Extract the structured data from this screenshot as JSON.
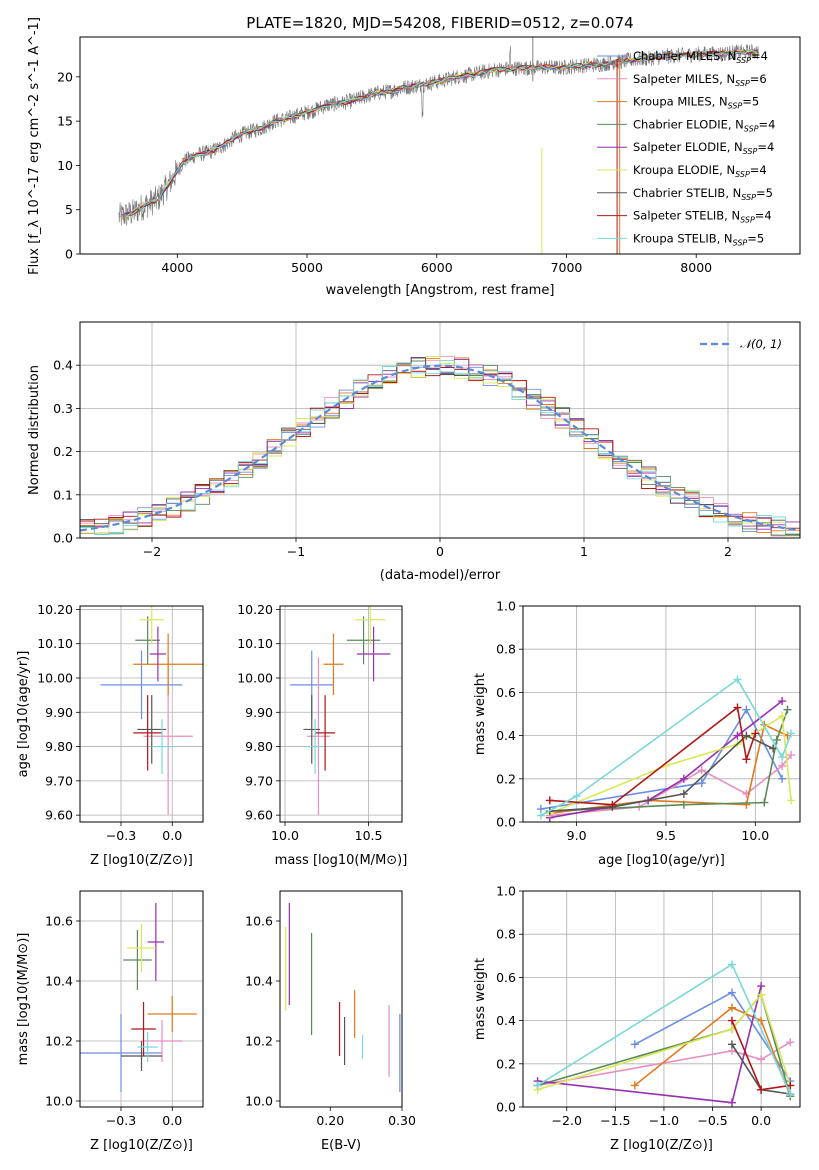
{
  "colors": {
    "Chabrier MILES": "#6b8fe0",
    "Salpeter MILES": "#e88fbf",
    "Kroupa MILES": "#e07a1f",
    "Chabrier ELODIE": "#5a8a5a",
    "Salpeter ELODIE": "#9830b0",
    "Kroupa ELODIE": "#d9e85a",
    "Chabrier STELIB": "#555555",
    "Salpeter STELIB": "#b01818",
    "Kroupa STELIB": "#7ad8d8"
  },
  "chart_data": [
    {
      "id": "spectrum",
      "type": "line",
      "title": "PLATE=1820, MJD=54208, FIBERID=0512, z=0.074",
      "xlabel": "wavelength [Angstrom, rest frame]",
      "ylabel": "Flux [f_λ 10^-17 erg cm^-2 s^-1 A^-1]",
      "xlim": [
        3250,
        8800
      ],
      "ylim": [
        0,
        24.5
      ],
      "xticks": [
        4000,
        5000,
        6000,
        7000,
        8000
      ],
      "yticks": [
        0,
        5,
        10,
        15,
        20
      ],
      "grid": false,
      "legend_position": "right",
      "x": [
        3550,
        3650,
        3750,
        3850,
        3950,
        4050,
        4150,
        4250,
        4350,
        4450,
        4550,
        4650,
        4750,
        4850,
        4950,
        5050,
        5150,
        5250,
        5350,
        5450,
        5550,
        5650,
        5750,
        5850,
        5950,
        6050,
        6150,
        6250,
        6350,
        6450,
        6550,
        6650,
        6750,
        6850,
        6950,
        7050,
        7150,
        7250,
        7350,
        7450,
        7550,
        7650,
        7750,
        7850,
        7950,
        8050,
        8150,
        8250,
        8350,
        8450
      ],
      "y": [
        4.2,
        4.6,
        5.5,
        6.2,
        8.2,
        10.5,
        11.2,
        11.5,
        12.2,
        13.2,
        13.8,
        14.2,
        15.0,
        15.3,
        15.8,
        16.2,
        16.8,
        17.0,
        17.3,
        17.8,
        18.2,
        18.4,
        18.8,
        19.0,
        19.3,
        19.6,
        20.0,
        20.2,
        20.5,
        20.8,
        20.9,
        21.0,
        21.0,
        21.1,
        21.0,
        21.2,
        21.3,
        21.4,
        21.6,
        21.8,
        22.0,
        22.1,
        22.3,
        22.4,
        22.5,
        22.6,
        22.6,
        22.7,
        22.8,
        22.8
      ],
      "legend": [
        {
          "label": "Chabrier MILES, N_SSP=4",
          "name": "Chabrier MILES",
          "n": "4"
        },
        {
          "label": "Salpeter MILES, N_SSP=6",
          "name": "Salpeter MILES",
          "n": "6"
        },
        {
          "label": "Kroupa MILES, N_SSP=5",
          "name": "Kroupa MILES",
          "n": "5"
        },
        {
          "label": "Chabrier ELODIE, N_SSP=4",
          "name": "Chabrier ELODIE",
          "n": "4"
        },
        {
          "label": "Salpeter ELODIE, N_SSP=4",
          "name": "Salpeter ELODIE",
          "n": "4"
        },
        {
          "label": "Kroupa ELODIE, N_SSP=4",
          "name": "Kroupa ELODIE",
          "n": "4"
        },
        {
          "label": "Chabrier STELIB, N_SSP=5",
          "name": "Chabrier STELIB",
          "n": "5"
        },
        {
          "label": "Salpeter STELIB, N_SSP=4",
          "name": "Salpeter STELIB",
          "n": "4"
        },
        {
          "label": "Kroupa STELIB, N_SSP=5",
          "name": "Kroupa STELIB",
          "n": "5"
        }
      ]
    },
    {
      "id": "residuals",
      "type": "histogram",
      "xlabel": "(data-model)/error",
      "ylabel": "Normed distribution",
      "xlim": [
        -2.5,
        2.5
      ],
      "ylim": [
        0,
        0.5
      ],
      "xticks": [
        -2,
        -1,
        0,
        1,
        2
      ],
      "yticks": [
        0.0,
        0.1,
        0.2,
        0.3,
        0.4
      ],
      "grid": true,
      "legend": "𝒩(0, 1)",
      "legend_position": "top-right",
      "bin_width": 0.1
    },
    {
      "id": "age_vs_Z",
      "type": "scatter",
      "xlabel": "Z [log10(Z/Z⊙)]",
      "ylabel": "age [log10(age/yr)]",
      "xlim": [
        -0.45,
        0.15
      ],
      "ylim": [
        9.58,
        10.21
      ],
      "xticks": [
        -0.25,
        0.0
      ],
      "yticks": [
        9.6,
        9.7,
        9.8,
        9.9,
        10.0,
        10.1,
        10.2
      ],
      "grid": true,
      "points": [
        {
          "name": "Chabrier MILES",
          "x": -0.15,
          "y": 9.98,
          "xerr": 0.2,
          "yerr": 0.1
        },
        {
          "name": "Salpeter MILES",
          "x": -0.02,
          "y": 9.83,
          "xerr": 0.12,
          "yerr": 0.23
        },
        {
          "name": "Kroupa MILES",
          "x": -0.02,
          "y": 10.04,
          "xerr": 0.17,
          "yerr": 0.09
        },
        {
          "name": "Chabrier ELODIE",
          "x": -0.12,
          "y": 10.11,
          "xerr": 0.06,
          "yerr": 0.07
        },
        {
          "name": "Salpeter ELODIE",
          "x": -0.07,
          "y": 10.07,
          "xerr": 0.04,
          "yerr": 0.08
        },
        {
          "name": "Kroupa ELODIE",
          "x": -0.1,
          "y": 10.17,
          "xerr": 0.06,
          "yerr": 0.07
        },
        {
          "name": "Chabrier STELIB",
          "x": -0.1,
          "y": 9.85,
          "xerr": 0.07,
          "yerr": 0.1
        },
        {
          "name": "Salpeter STELIB",
          "x": -0.12,
          "y": 9.84,
          "xerr": 0.07,
          "yerr": 0.11
        },
        {
          "name": "Kroupa STELIB",
          "x": -0.05,
          "y": 9.8,
          "xerr": 0.05,
          "yerr": 0.08
        }
      ]
    },
    {
      "id": "age_vs_mass",
      "type": "scatter",
      "xlabel": "mass [log10(M/M⊙)]",
      "ylabel": "",
      "xlim": [
        9.97,
        10.7
      ],
      "ylim": [
        9.58,
        10.21
      ],
      "xticks": [
        10.0,
        10.5
      ],
      "yticks": [
        9.6,
        9.7,
        9.8,
        9.9,
        10.0,
        10.1,
        10.2
      ],
      "grid": true,
      "points": [
        {
          "name": "Chabrier MILES",
          "x": 10.16,
          "y": 9.98,
          "xerr": 0.13,
          "yerr": 0.1
        },
        {
          "name": "Salpeter MILES",
          "x": 10.2,
          "y": 9.83,
          "xerr": 0.07,
          "yerr": 0.23
        },
        {
          "name": "Kroupa MILES",
          "x": 10.29,
          "y": 10.04,
          "xerr": 0.06,
          "yerr": 0.09
        },
        {
          "name": "Chabrier ELODIE",
          "x": 10.47,
          "y": 10.11,
          "xerr": 0.1,
          "yerr": 0.07
        },
        {
          "name": "Salpeter ELODIE",
          "x": 10.53,
          "y": 10.07,
          "xerr": 0.1,
          "yerr": 0.08
        },
        {
          "name": "Kroupa ELODIE",
          "x": 10.51,
          "y": 10.17,
          "xerr": 0.09,
          "yerr": 0.07
        },
        {
          "name": "Chabrier STELIB",
          "x": 10.16,
          "y": 9.85,
          "xerr": 0.05,
          "yerr": 0.1
        },
        {
          "name": "Salpeter STELIB",
          "x": 10.24,
          "y": 9.84,
          "xerr": 0.06,
          "yerr": 0.11
        },
        {
          "name": "Kroupa STELIB",
          "x": 10.18,
          "y": 9.8,
          "xerr": 0.05,
          "yerr": 0.08
        }
      ]
    },
    {
      "id": "weight_vs_age",
      "type": "line",
      "xlabel": "age [log10(age/yr)]",
      "ylabel": "mass weight",
      "xlim": [
        8.7,
        10.25
      ],
      "ylim": [
        0,
        1
      ],
      "xticks": [
        9.0,
        9.5,
        10.0
      ],
      "yticks": [
        0.0,
        0.2,
        0.4,
        0.6,
        0.8,
        1.0
      ],
      "grid": true,
      "series": [
        {
          "name": "Chabrier MILES",
          "x": [
            8.8,
            9.7,
            9.95,
            10.15
          ],
          "y": [
            0.06,
            0.18,
            0.52,
            0.2
          ]
        },
        {
          "name": "Salpeter MILES",
          "x": [
            8.85,
            9.35,
            9.7,
            9.95,
            10.15,
            10.2
          ],
          "y": [
            0.03,
            0.07,
            0.24,
            0.13,
            0.26,
            0.31
          ]
        },
        {
          "name": "Kroupa MILES",
          "x": [
            8.85,
            9.4,
            9.95,
            10.05,
            10.18
          ],
          "y": [
            0.04,
            0.1,
            0.08,
            0.45,
            0.4
          ]
        },
        {
          "name": "Chabrier ELODIE",
          "x": [
            8.85,
            9.6,
            10.05,
            10.12,
            10.18
          ],
          "y": [
            0.05,
            0.08,
            0.09,
            0.38,
            0.52
          ]
        },
        {
          "name": "Salpeter ELODIE",
          "x": [
            8.85,
            9.4,
            9.6,
            9.9,
            10.15
          ],
          "y": [
            0.02,
            0.1,
            0.2,
            0.4,
            0.56
          ]
        },
        {
          "name": "Kroupa ELODIE",
          "x": [
            8.85,
            9.5,
            9.9,
            10.15,
            10.2
          ],
          "y": [
            0.04,
            0.26,
            0.36,
            0.49,
            0.1
          ]
        },
        {
          "name": "Chabrier STELIB",
          "x": [
            8.85,
            9.2,
            9.6,
            9.95,
            10.1
          ],
          "y": [
            0.05,
            0.07,
            0.13,
            0.4,
            0.34
          ]
        },
        {
          "name": "Salpeter STELIB",
          "x": [
            8.85,
            9.2,
            9.9,
            9.95,
            10.0
          ],
          "y": [
            0.1,
            0.08,
            0.53,
            0.29,
            0.41
          ]
        },
        {
          "name": "Kroupa STELIB",
          "x": [
            8.8,
            9.0,
            9.9,
            10.15,
            10.2
          ],
          "y": [
            0.03,
            0.12,
            0.66,
            0.3,
            0.41
          ]
        }
      ]
    },
    {
      "id": "mass_vs_Z",
      "type": "scatter",
      "xlabel": "Z [log10(Z/Z⊙)]",
      "ylabel": "mass [log10(M/M⊙)]",
      "xlim": [
        -0.45,
        0.15
      ],
      "ylim": [
        9.98,
        10.7
      ],
      "xticks": [
        -0.25,
        0.0
      ],
      "yticks": [
        10.0,
        10.2,
        10.4,
        10.6
      ],
      "grid": true,
      "points": [
        {
          "name": "Chabrier MILES",
          "x": -0.25,
          "y": 10.16,
          "xerr": 0.2,
          "yerr": 0.13
        },
        {
          "name": "Salpeter MILES",
          "x": -0.05,
          "y": 10.2,
          "xerr": 0.1,
          "yerr": 0.07
        },
        {
          "name": "Kroupa MILES",
          "x": 0.0,
          "y": 10.29,
          "xerr": 0.12,
          "yerr": 0.06
        },
        {
          "name": "Chabrier ELODIE",
          "x": -0.17,
          "y": 10.47,
          "xerr": 0.07,
          "yerr": 0.1
        },
        {
          "name": "Salpeter ELODIE",
          "x": -0.08,
          "y": 10.53,
          "xerr": 0.04,
          "yerr": 0.13
        },
        {
          "name": "Kroupa ELODIE",
          "x": -0.15,
          "y": 10.51,
          "xerr": 0.07,
          "yerr": 0.08
        },
        {
          "name": "Chabrier STELIB",
          "x": -0.15,
          "y": 10.15,
          "xerr": 0.1,
          "yerr": 0.05
        },
        {
          "name": "Salpeter STELIB",
          "x": -0.14,
          "y": 10.24,
          "xerr": 0.06,
          "yerr": 0.09
        },
        {
          "name": "Kroupa STELIB",
          "x": -0.12,
          "y": 10.18,
          "xerr": 0.05,
          "yerr": 0.05
        }
      ]
    },
    {
      "id": "mass_vs_ebv",
      "type": "scatter",
      "xlabel": "E(B-V)",
      "ylabel": "",
      "xlim": [
        0.13,
        0.3
      ],
      "ylim": [
        9.98,
        10.7
      ],
      "xticks": [
        0.2,
        0.3
      ],
      "yticks": [
        10.0,
        10.2,
        10.4,
        10.6
      ],
      "grid": false,
      "points": [
        {
          "name": "Chabrier MILES",
          "x": 0.297,
          "y": 10.16,
          "yerr": 0.13
        },
        {
          "name": "Salpeter MILES",
          "x": 0.282,
          "y": 10.2,
          "yerr": 0.12
        },
        {
          "name": "Kroupa MILES",
          "x": 0.234,
          "y": 10.29,
          "yerr": 0.08
        },
        {
          "name": "Chabrier ELODIE",
          "x": 0.174,
          "y": 10.39,
          "yerr": 0.17
        },
        {
          "name": "Salpeter ELODIE",
          "x": 0.143,
          "y": 10.49,
          "yerr": 0.17
        },
        {
          "name": "Kroupa ELODIE",
          "x": 0.138,
          "y": 10.44,
          "yerr": 0.14
        },
        {
          "name": "Chabrier STELIB",
          "x": 0.22,
          "y": 10.2,
          "yerr": 0.08
        },
        {
          "name": "Salpeter STELIB",
          "x": 0.213,
          "y": 10.24,
          "yerr": 0.09
        },
        {
          "name": "Kroupa STELIB",
          "x": 0.245,
          "y": 10.18,
          "yerr": 0.04
        }
      ]
    },
    {
      "id": "weight_vs_Z",
      "type": "line",
      "xlabel": "Z [log10(Z/Z⊙)]",
      "ylabel": "mass weight",
      "xlim": [
        -2.45,
        0.4
      ],
      "ylim": [
        0,
        1
      ],
      "xticks": [
        -2.0,
        -1.5,
        -1.0,
        -0.5,
        0.0
      ],
      "yticks": [
        0.0,
        0.2,
        0.4,
        0.6,
        0.8,
        1.0
      ],
      "grid": true,
      "series": [
        {
          "name": "Chabrier MILES",
          "x": [
            -1.3,
            -0.3,
            0.3
          ],
          "y": [
            0.29,
            0.53,
            0.12
          ]
        },
        {
          "name": "Salpeter MILES",
          "x": [
            -2.3,
            -0.3,
            0.0,
            0.3
          ],
          "y": [
            0.1,
            0.26,
            0.22,
            0.3
          ]
        },
        {
          "name": "Kroupa MILES",
          "x": [
            -1.3,
            -0.3,
            0.0,
            0.3
          ],
          "y": [
            0.1,
            0.46,
            0.4,
            0.05
          ]
        },
        {
          "name": "Chabrier ELODIE",
          "x": [
            -2.3,
            -0.3,
            0.0,
            0.3
          ],
          "y": [
            0.1,
            0.36,
            0.52,
            0.05
          ]
        },
        {
          "name": "Salpeter ELODIE",
          "x": [
            -2.3,
            -0.3,
            0.0
          ],
          "y": [
            0.12,
            0.02,
            0.56
          ]
        },
        {
          "name": "Kroupa ELODIE",
          "x": [
            -2.3,
            -0.3,
            0.0,
            0.3
          ],
          "y": [
            0.08,
            0.36,
            0.52,
            0.1
          ]
        },
        {
          "name": "Chabrier STELIB",
          "x": [
            -0.3,
            0.0,
            0.3
          ],
          "y": [
            0.29,
            0.08,
            0.06
          ]
        },
        {
          "name": "Salpeter STELIB",
          "x": [
            -0.3,
            0.0,
            0.3
          ],
          "y": [
            0.4,
            0.08,
            0.1
          ]
        },
        {
          "name": "Kroupa STELIB",
          "x": [
            -2.3,
            -0.3,
            0.3
          ],
          "y": [
            0.1,
            0.66,
            0.06
          ]
        }
      ]
    }
  ]
}
